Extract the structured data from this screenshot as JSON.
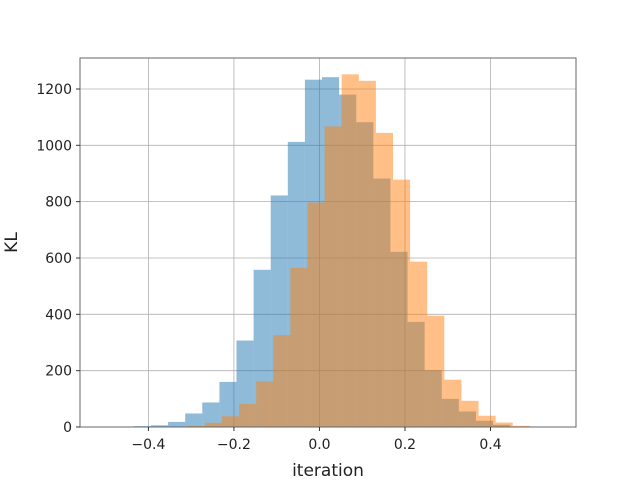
{
  "chart_data": {
    "type": "histogram",
    "xlabel": "iteration",
    "ylabel": "KL",
    "xlim": [
      -0.56,
      0.6
    ],
    "ylim": [
      0,
      1310
    ],
    "xticks": [
      -0.4,
      -0.2,
      0.0,
      0.2,
      0.4
    ],
    "xtick_labels": [
      "−0.4",
      "−0.2",
      "0.0",
      "0.2",
      "0.4"
    ],
    "yticks": [
      0,
      200,
      400,
      600,
      800,
      1000,
      1200
    ],
    "ytick_labels": [
      "0",
      "200",
      "400",
      "600",
      "800",
      "1000",
      "1200"
    ],
    "grid": true,
    "legend": "none",
    "series": [
      {
        "color": "#1f77b4",
        "opacity": 0.5,
        "bins": [
          {
            "x0": -0.434,
            "x1": -0.394,
            "count": 3
          },
          {
            "x0": -0.394,
            "x1": -0.354,
            "count": 6
          },
          {
            "x0": -0.354,
            "x1": -0.314,
            "count": 18
          },
          {
            "x0": -0.314,
            "x1": -0.274,
            "count": 48
          },
          {
            "x0": -0.274,
            "x1": -0.234,
            "count": 87
          },
          {
            "x0": -0.234,
            "x1": -0.194,
            "count": 160
          },
          {
            "x0": -0.194,
            "x1": -0.154,
            "count": 307
          },
          {
            "x0": -0.154,
            "x1": -0.114,
            "count": 558
          },
          {
            "x0": -0.114,
            "x1": -0.074,
            "count": 822
          },
          {
            "x0": -0.074,
            "x1": -0.034,
            "count": 1012
          },
          {
            "x0": -0.034,
            "x1": 0.006,
            "count": 1233
          },
          {
            "x0": 0.006,
            "x1": 0.046,
            "count": 1242
          },
          {
            "x0": 0.046,
            "x1": 0.086,
            "count": 1180
          },
          {
            "x0": 0.086,
            "x1": 0.126,
            "count": 1082
          },
          {
            "x0": 0.126,
            "x1": 0.166,
            "count": 882
          },
          {
            "x0": 0.166,
            "x1": 0.206,
            "count": 622
          },
          {
            "x0": 0.206,
            "x1": 0.246,
            "count": 373
          },
          {
            "x0": 0.246,
            "x1": 0.286,
            "count": 202
          },
          {
            "x0": 0.286,
            "x1": 0.326,
            "count": 100
          },
          {
            "x0": 0.326,
            "x1": 0.366,
            "count": 55
          },
          {
            "x0": 0.366,
            "x1": 0.406,
            "count": 22
          },
          {
            "x0": 0.406,
            "x1": 0.446,
            "count": 8
          }
        ]
      },
      {
        "color": "#ff7f0e",
        "opacity": 0.5,
        "bins": [
          {
            "x0": -0.308,
            "x1": -0.268,
            "count": 4
          },
          {
            "x0": -0.268,
            "x1": -0.228,
            "count": 15
          },
          {
            "x0": -0.228,
            "x1": -0.188,
            "count": 38
          },
          {
            "x0": -0.188,
            "x1": -0.148,
            "count": 82
          },
          {
            "x0": -0.148,
            "x1": -0.108,
            "count": 162
          },
          {
            "x0": -0.108,
            "x1": -0.068,
            "count": 326
          },
          {
            "x0": -0.068,
            "x1": -0.028,
            "count": 565
          },
          {
            "x0": -0.028,
            "x1": 0.012,
            "count": 797
          },
          {
            "x0": 0.012,
            "x1": 0.052,
            "count": 1067
          },
          {
            "x0": 0.052,
            "x1": 0.092,
            "count": 1252
          },
          {
            "x0": 0.092,
            "x1": 0.132,
            "count": 1229
          },
          {
            "x0": 0.132,
            "x1": 0.172,
            "count": 1044
          },
          {
            "x0": 0.172,
            "x1": 0.212,
            "count": 878
          },
          {
            "x0": 0.212,
            "x1": 0.252,
            "count": 587
          },
          {
            "x0": 0.252,
            "x1": 0.292,
            "count": 395
          },
          {
            "x0": 0.292,
            "x1": 0.332,
            "count": 168
          },
          {
            "x0": 0.332,
            "x1": 0.372,
            "count": 93
          },
          {
            "x0": 0.372,
            "x1": 0.412,
            "count": 40
          },
          {
            "x0": 0.412,
            "x1": 0.452,
            "count": 16
          },
          {
            "x0": 0.452,
            "x1": 0.492,
            "count": 4
          }
        ]
      }
    ]
  }
}
